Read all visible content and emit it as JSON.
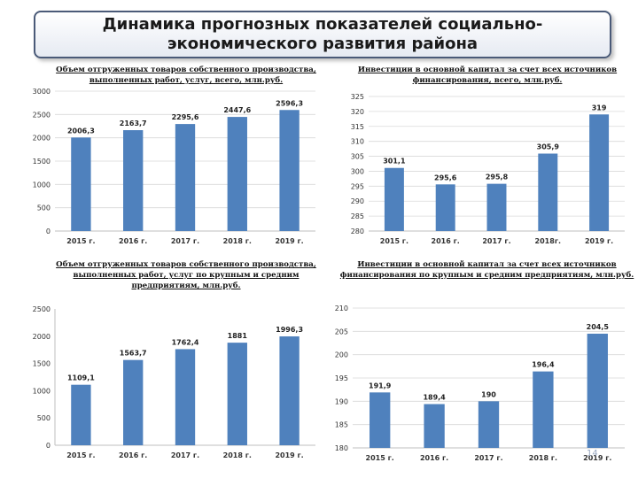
{
  "title": "Динамика прогнозных показателей социально-экономического развития района",
  "page_number": "14",
  "chart_data": [
    {
      "type": "bar",
      "title": "Объем отгруженных товаров собственного производства, выполненных работ, услуг, всего, млн.руб.",
      "categories": [
        "2015 г.",
        "2016 г.",
        "2017 г.",
        "2018 г.",
        "2019 г."
      ],
      "values": [
        2006.3,
        2163.7,
        2295.6,
        2447.6,
        2596.3
      ],
      "labels": [
        "2006,3",
        "2163,7",
        "2295,6",
        "2447,6",
        "2596,3"
      ],
      "ylim": [
        0,
        3000
      ],
      "yticks": [
        0,
        500,
        1000,
        1500,
        2000,
        2500,
        3000
      ],
      "grid": true,
      "color": "#4f81bd"
    },
    {
      "type": "bar",
      "title": "Инвестиции в основной капитал за счет всех источников финансирования, всего, млн.руб.",
      "categories": [
        "2015 г.",
        "2016 г.",
        "2017 г.",
        "2018г.",
        "2019 г."
      ],
      "values": [
        301.1,
        295.6,
        295.8,
        305.9,
        319
      ],
      "labels": [
        "301,1",
        "295,6",
        "295,8",
        "305,9",
        "319"
      ],
      "ylim": [
        280,
        325
      ],
      "yticks": [
        280,
        285,
        290,
        295,
        300,
        305,
        310,
        315,
        320,
        325
      ],
      "grid": true,
      "color": "#4f81bd"
    },
    {
      "type": "bar",
      "title": "Объем отгруженных товаров собственного производства, выполненных работ, услуг по крупным и средним предприятиям, млн.руб.",
      "categories": [
        "2015 г.",
        "2016 г.",
        "2017 г.",
        "2018 г.",
        "2019 г."
      ],
      "values": [
        1109.1,
        1563.7,
        1762.4,
        1881,
        1996.3
      ],
      "labels": [
        "1109,1",
        "1563,7",
        "1762,4",
        "1881",
        "1996,3"
      ],
      "ylim": [
        0,
        2500
      ],
      "yticks": [
        0,
        500,
        1000,
        1500,
        2000,
        2500
      ],
      "grid": false,
      "color": "#4f81bd"
    },
    {
      "type": "bar",
      "title": "Инвестиции в основной капитал за счет всех источников финансирования по крупным и средним предприятиям, млн.руб.",
      "categories": [
        "2015 г.",
        "2016 г.",
        "2017 г.",
        "2018 г.",
        "2019 г."
      ],
      "values": [
        191.9,
        189.4,
        190,
        196.4,
        204.5
      ],
      "labels": [
        "191,9",
        "189,4",
        "190",
        "196,4",
        "204,5"
      ],
      "ylim": [
        180,
        210
      ],
      "yticks": [
        180,
        185,
        190,
        195,
        200,
        205,
        210
      ],
      "grid": true,
      "color": "#4f81bd"
    }
  ]
}
